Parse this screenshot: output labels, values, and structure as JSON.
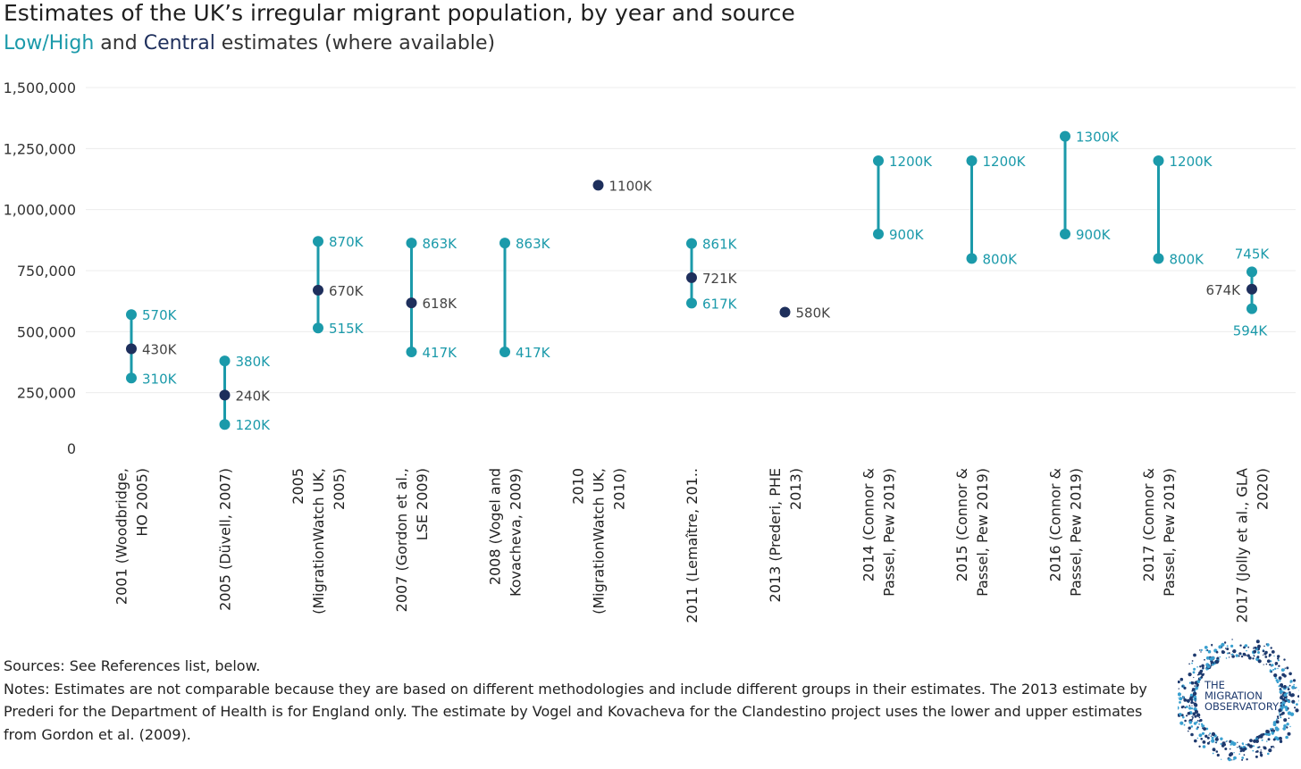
{
  "title": "Estimates of the UK’s irregular migrant population, by year and source",
  "subtitle": {
    "lowhigh": "Low/High",
    "mid": " and ",
    "central": "Central",
    "rest": " estimates (where available)"
  },
  "colors": {
    "lowhigh": "#1b9aaa",
    "central": "#1e2f5c",
    "grid": "#ececec"
  },
  "chart_data": {
    "type": "scatter",
    "subtype": "dot-range",
    "ylim": [
      0,
      1500000
    ],
    "yticks": [
      0,
      250000,
      500000,
      750000,
      1000000,
      1250000,
      1500000
    ],
    "ytick_labels": [
      "0",
      "250,000",
      "500,000",
      "750,000",
      "1,000,000",
      "1,250,000",
      "1,500,000"
    ],
    "categories": [
      [
        "2001 (Woodbridge,",
        "HO 2005)"
      ],
      [
        "2005 (Düvell, 2007)"
      ],
      [
        "2005",
        "(MigrationWatch UK,",
        "2005)"
      ],
      [
        "2007 (Gordon et al.,",
        "LSE 2009)"
      ],
      [
        "2008 (Vogel and",
        "Kovacheva, 2009)"
      ],
      [
        "2010",
        "(MigrationWatch UK,",
        "2010)"
      ],
      [
        "2011 (Lemaître, 201.."
      ],
      [
        "2013 (Prederi, PHE",
        "2013)"
      ],
      [
        "2014 (Connor &",
        "Passel, Pew 2019)"
      ],
      [
        "2015 (Connor &",
        "Passel, Pew 2019)"
      ],
      [
        "2016 (Connor &",
        "Passel, Pew 2019)"
      ],
      [
        "2017 (Connor &",
        "Passel, Pew 2019)"
      ],
      [
        "2017 (Jolly et al., GLA",
        "2020)"
      ]
    ],
    "series": [
      {
        "name": "Low",
        "values": [
          310000,
          120000,
          515000,
          417000,
          417000,
          null,
          617000,
          null,
          900000,
          800000,
          900000,
          800000,
          594000
        ],
        "labels": [
          "310K",
          "120K",
          "515K",
          "417K",
          "417K",
          null,
          "617K",
          null,
          "900K",
          "800K",
          "900K",
          "800K",
          "594K"
        ]
      },
      {
        "name": "High",
        "values": [
          570000,
          380000,
          870000,
          863000,
          863000,
          null,
          861000,
          null,
          1200000,
          1200000,
          1300000,
          1200000,
          745000
        ],
        "labels": [
          "570K",
          "380K",
          "870K",
          "863K",
          "863K",
          null,
          "861K",
          null,
          "1200K",
          "1200K",
          "1300K",
          "1200K",
          "745K"
        ]
      },
      {
        "name": "Central",
        "values": [
          430000,
          240000,
          670000,
          618000,
          null,
          1100000,
          721000,
          580000,
          null,
          null,
          null,
          null,
          674000
        ],
        "labels": [
          "430K",
          "240K",
          "670K",
          "618K",
          null,
          "1100K",
          "721K",
          "580K",
          null,
          null,
          null,
          null,
          "674K"
        ]
      }
    ],
    "grid": true,
    "legend": "none"
  },
  "footer": {
    "sources": "Sources: See References list, below.",
    "notes": "Notes: Estimates are not comparable because they are based on different methodologies and include different groups in their estimates. The 2013 estimate by Prederi for the Department of Health is for England only. The estimate by Vogel and Kovacheva for the Clandestino project uses the lower and upper estimates from Gordon et al. (2009)."
  },
  "logo": {
    "line1": "THE",
    "line2": "MIGRATION",
    "line3": "OBSERVATORY"
  }
}
